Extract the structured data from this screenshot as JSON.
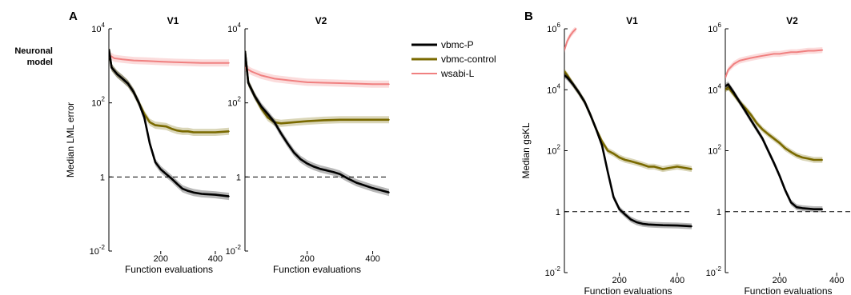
{
  "row_label": [
    "Neuronal",
    "model"
  ],
  "legend": [
    {
      "label": "vbmc-P",
      "color": "#000000"
    },
    {
      "label": "vbmc-control",
      "color": "#7a6a00"
    },
    {
      "label": "wsabi-L",
      "color": "#f08080"
    }
  ],
  "chart_data": [
    {
      "type": "line",
      "panel_letter": "A",
      "title": "V1",
      "xlabel": "Function evaluations",
      "ylabel": "Median LML error",
      "yscale": "log",
      "xlim": [
        10,
        450
      ],
      "ylim": [
        0.01,
        10000
      ],
      "xticks": [
        200,
        400
      ],
      "yticks": [
        0.01,
        1,
        100,
        10000
      ],
      "yticklabels": [
        [
          "10",
          "-2"
        ],
        [
          "1",
          ""
        ],
        [
          "10",
          "2"
        ],
        [
          "10",
          "4"
        ]
      ],
      "reference_line": 1,
      "series": [
        {
          "name": "vbmc-P",
          "x": [
            10,
            20,
            40,
            60,
            80,
            100,
            120,
            140,
            160,
            180,
            200,
            220,
            240,
            260,
            280,
            300,
            320,
            350,
            400,
            450
          ],
          "y": [
            2800,
            900,
            600,
            450,
            330,
            200,
            100,
            40,
            8,
            2.5,
            1.6,
            1.2,
            0.9,
            0.65,
            0.48,
            0.42,
            0.38,
            0.35,
            0.33,
            0.3
          ]
        },
        {
          "name": "vbmc-control",
          "x": [
            10,
            20,
            40,
            60,
            80,
            100,
            120,
            140,
            160,
            180,
            200,
            220,
            240,
            260,
            280,
            300,
            320,
            350,
            400,
            450
          ],
          "y": [
            2800,
            900,
            600,
            450,
            330,
            200,
            100,
            50,
            30,
            25,
            24,
            23,
            20,
            18,
            17,
            17,
            16,
            16,
            16,
            17
          ]
        },
        {
          "name": "wsabi-L",
          "x": [
            10,
            30,
            60,
            100,
            150,
            200,
            250,
            300,
            350,
            400,
            450
          ],
          "y": [
            2000,
            1600,
            1500,
            1400,
            1350,
            1300,
            1250,
            1220,
            1200,
            1200,
            1200
          ]
        }
      ]
    },
    {
      "type": "line",
      "title": "V2",
      "xlabel": "Function evaluations",
      "ylabel": "",
      "yscale": "log",
      "xlim": [
        10,
        450
      ],
      "ylim": [
        0.01,
        10000
      ],
      "xticks": [
        200,
        400
      ],
      "yticks": [
        0.01,
        1,
        100,
        10000
      ],
      "yticklabels": [
        [
          "10",
          "-2"
        ],
        [
          "1",
          ""
        ],
        [
          "10",
          "2"
        ],
        [
          "10",
          "4"
        ]
      ],
      "reference_line": 1,
      "series": [
        {
          "name": "vbmc-P",
          "x": [
            10,
            20,
            40,
            60,
            80,
            100,
            120,
            140,
            160,
            180,
            200,
            220,
            240,
            260,
            280,
            300,
            320,
            350,
            400,
            450
          ],
          "y": [
            2500,
            350,
            150,
            80,
            50,
            30,
            15,
            8,
            4.5,
            3,
            2.3,
            1.9,
            1.65,
            1.5,
            1.35,
            1.2,
            0.95,
            0.7,
            0.5,
            0.38
          ]
        },
        {
          "name": "vbmc-control",
          "x": [
            10,
            20,
            40,
            60,
            80,
            100,
            120,
            160,
            200,
            250,
            300,
            350,
            400,
            450
          ],
          "y": [
            2500,
            350,
            150,
            70,
            40,
            30,
            28,
            30,
            32,
            34,
            35,
            35,
            35,
            35
          ]
        },
        {
          "name": "wsabi-L",
          "x": [
            10,
            30,
            60,
            100,
            150,
            200,
            250,
            300,
            350,
            400,
            450
          ],
          "y": [
            900,
            700,
            550,
            450,
            400,
            360,
            350,
            340,
            330,
            320,
            320
          ]
        }
      ]
    },
    {
      "type": "line",
      "panel_letter": "B",
      "title": "V1",
      "xlabel": "Function evaluations",
      "ylabel": "Median gsKL",
      "yscale": "log",
      "xlim": [
        10,
        450
      ],
      "ylim": [
        0.01,
        1000000
      ],
      "xticks": [
        200,
        400
      ],
      "yticks": [
        0.01,
        1,
        100,
        10000,
        1000000
      ],
      "yticklabels": [
        [
          "10",
          "-2"
        ],
        [
          "1",
          ""
        ],
        [
          "10",
          "2"
        ],
        [
          "10",
          "4"
        ],
        [
          "10",
          "6"
        ]
      ],
      "reference_line": 1,
      "series": [
        {
          "name": "vbmc-P",
          "x": [
            10,
            20,
            40,
            60,
            80,
            100,
            120,
            140,
            160,
            180,
            200,
            220,
            240,
            260,
            280,
            300,
            320,
            350,
            400,
            450
          ],
          "y": [
            30000,
            25000,
            15000,
            8000,
            4000,
            1500,
            500,
            150,
            20,
            3,
            1.2,
            0.8,
            0.55,
            0.45,
            0.4,
            0.38,
            0.37,
            0.36,
            0.35,
            0.33
          ]
        },
        {
          "name": "vbmc-control",
          "x": [
            10,
            20,
            40,
            60,
            80,
            100,
            120,
            140,
            160,
            180,
            200,
            220,
            240,
            260,
            280,
            300,
            320,
            350,
            400,
            450
          ],
          "y": [
            40000,
            30000,
            15000,
            8000,
            4000,
            1500,
            500,
            200,
            100,
            80,
            60,
            50,
            45,
            40,
            35,
            30,
            30,
            25,
            30,
            25
          ]
        },
        {
          "name": "wsabi-L",
          "x": [
            10,
            20,
            30,
            40,
            50
          ],
          "y": [
            200000,
            400000,
            600000,
            800000,
            1000000
          ]
        }
      ]
    },
    {
      "type": "line",
      "title": "V2",
      "xlabel": "Function evaluations",
      "ylabel": "",
      "yscale": "log",
      "xlim": [
        10,
        450
      ],
      "ylim": [
        0.01,
        1000000
      ],
      "xticks": [
        200,
        400
      ],
      "yticks": [
        0.01,
        1,
        100,
        10000,
        1000000
      ],
      "yticklabels": [
        [
          "10",
          "-2"
        ],
        [
          "1",
          ""
        ],
        [
          "10",
          "2"
        ],
        [
          "10",
          "4"
        ],
        [
          "10",
          "6"
        ]
      ],
      "reference_line": 1,
      "series": [
        {
          "name": "vbmc-P",
          "x": [
            10,
            20,
            40,
            60,
            80,
            100,
            120,
            140,
            160,
            180,
            200,
            220,
            240,
            260,
            280,
            300,
            320,
            350
          ],
          "y": [
            13000,
            15000,
            8000,
            4000,
            2000,
            1000,
            500,
            250,
            100,
            40,
            15,
            5,
            2,
            1.4,
            1.3,
            1.25,
            1.2,
            1.2
          ]
        },
        {
          "name": "vbmc-control",
          "x": [
            10,
            20,
            40,
            60,
            80,
            100,
            120,
            140,
            160,
            180,
            200,
            220,
            240,
            260,
            280,
            300,
            320,
            350
          ],
          "y": [
            10000,
            12000,
            7000,
            4000,
            2500,
            1500,
            800,
            500,
            350,
            250,
            180,
            120,
            90,
            70,
            60,
            55,
            50,
            50
          ]
        },
        {
          "name": "wsabi-L",
          "x": [
            10,
            20,
            40,
            60,
            80,
            100,
            120,
            140,
            160,
            180,
            200,
            220,
            240,
            260,
            280,
            300,
            320,
            350
          ],
          "y": [
            25000,
            45000,
            70000,
            90000,
            100000,
            110000,
            120000,
            130000,
            140000,
            150000,
            150000,
            160000,
            170000,
            170000,
            180000,
            190000,
            190000,
            200000
          ]
        }
      ]
    }
  ]
}
